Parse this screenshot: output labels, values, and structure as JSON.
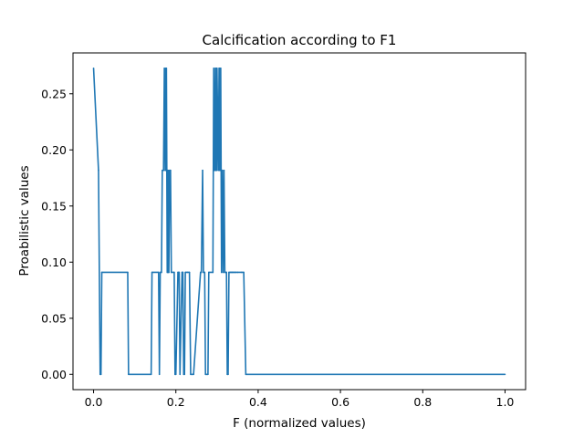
{
  "chart_data": {
    "type": "line",
    "title": "Calcification according to F1",
    "xlabel": "F (normalized values)",
    "ylabel": "Proabilistic values",
    "xlim": [
      -0.05,
      1.05
    ],
    "ylim": [
      -0.0136,
      0.2864
    ],
    "xticks": [
      0.0,
      0.2,
      0.4,
      0.6,
      0.8,
      1.0
    ],
    "xtick_labels": [
      "0.0",
      "0.2",
      "0.4",
      "0.6",
      "0.8",
      "1.0"
    ],
    "yticks": [
      0.0,
      0.05,
      0.1,
      0.15,
      0.2,
      0.25
    ],
    "ytick_labels": [
      "0.00",
      "0.05",
      "0.10",
      "0.15",
      "0.20",
      "0.25"
    ],
    "grid": false,
    "series": [
      {
        "color": "#1f77b4",
        "x": [
          0.0,
          0.012,
          0.016,
          0.018,
          0.02,
          0.083,
          0.085,
          0.14,
          0.142,
          0.158,
          0.16,
          0.162,
          0.165,
          0.167,
          0.17,
          0.172,
          0.174,
          0.175,
          0.176,
          0.177,
          0.178,
          0.179,
          0.18,
          0.181,
          0.182,
          0.183,
          0.185,
          0.187,
          0.189,
          0.196,
          0.198,
          0.2,
          0.205,
          0.208,
          0.21,
          0.215,
          0.217,
          0.219,
          0.221,
          0.223,
          0.228,
          0.233,
          0.236,
          0.24,
          0.243,
          0.26,
          0.262,
          0.265,
          0.267,
          0.27,
          0.272,
          0.278,
          0.28,
          0.29,
          0.292,
          0.294,
          0.295,
          0.296,
          0.297,
          0.298,
          0.299,
          0.3,
          0.303,
          0.305,
          0.306,
          0.307,
          0.308,
          0.309,
          0.31,
          0.311,
          0.312,
          0.313,
          0.315,
          0.317,
          0.319,
          0.321,
          0.323,
          0.325,
          0.327,
          0.329,
          0.332,
          0.334,
          0.336,
          0.338,
          0.34,
          0.343,
          0.345,
          0.35,
          0.36,
          0.365,
          0.37,
          1.0
        ],
        "y": [
          0.2727,
          0.1818,
          0.0,
          0.0,
          0.0909,
          0.0909,
          0.0,
          0.0,
          0.0909,
          0.0909,
          0.0,
          0.0909,
          0.0909,
          0.1818,
          0.1818,
          0.2727,
          0.1818,
          0.2727,
          0.1818,
          0.2727,
          0.1818,
          0.0909,
          0.1818,
          0.0909,
          0.1818,
          0.0909,
          0.1818,
          0.1818,
          0.0909,
          0.0909,
          0.0,
          0.0,
          0.0909,
          0.0909,
          0.0,
          0.0909,
          0.0909,
          0.0,
          0.0,
          0.0909,
          0.0909,
          0.0909,
          0.0,
          0.0,
          0.0,
          0.0909,
          0.0909,
          0.1818,
          0.0909,
          0.0909,
          0.0,
          0.0,
          0.0909,
          0.0909,
          0.2727,
          0.1818,
          0.1818,
          0.2727,
          0.1818,
          0.2727,
          0.1818,
          0.2727,
          0.1818,
          0.2727,
          0.1818,
          0.2727,
          0.1818,
          0.2727,
          0.1818,
          0.0909,
          0.1818,
          0.1818,
          0.0909,
          0.1818,
          0.0909,
          0.0909,
          0.0909,
          0.0,
          0.0,
          0.0909,
          0.0909,
          0.0909,
          0.0909,
          0.0909,
          0.0909,
          0.0909,
          0.0909,
          0.0909,
          0.0909,
          0.0909,
          0.0,
          0.0
        ]
      }
    ]
  }
}
